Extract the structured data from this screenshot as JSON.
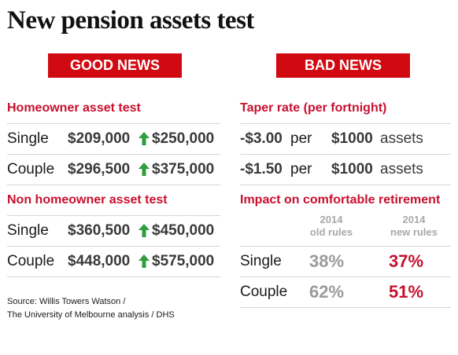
{
  "title": "New pension assets test",
  "good_news": {
    "banner": "GOOD NEWS",
    "homeowner": {
      "heading": "Homeowner asset test",
      "rows": [
        {
          "label": "Single",
          "old": "$209,000",
          "new": "$250,000"
        },
        {
          "label": "Couple",
          "old": "$296,500",
          "new": "$375,000"
        }
      ]
    },
    "non_homeowner": {
      "heading": "Non homeowner asset test",
      "rows": [
        {
          "label": "Single",
          "old": "$360,500",
          "new": "$450,000"
        },
        {
          "label": "Couple",
          "old": "$448,000",
          "new": "$575,000"
        }
      ]
    },
    "arrow_icon": "up-arrow-icon",
    "arrow_color": "#2e9e3e"
  },
  "bad_news": {
    "banner": "BAD NEWS",
    "taper": {
      "heading": "Taper rate (per fortnight)",
      "rows": [
        {
          "rate": "-$3.00",
          "per": "per",
          "amount": "$1000",
          "unit": "assets"
        },
        {
          "rate": "-$1.50",
          "per": "per",
          "amount": "$1000",
          "unit": "assets"
        }
      ]
    },
    "impact": {
      "heading": "Impact on comfortable retirement",
      "col_old": {
        "year": "2014",
        "label": "old rules"
      },
      "col_new": {
        "year": "2014",
        "label": "new rules"
      },
      "rows": [
        {
          "label": "Single",
          "old": "38%",
          "new": "37%"
        },
        {
          "label": "Couple",
          "old": "62%",
          "new": "51%"
        }
      ]
    }
  },
  "source": {
    "line1": "Source: Willis Towers Watson /",
    "line2": "The University of Melbourne analysis / DHS"
  },
  "colors": {
    "accent_red": "#d10a11",
    "heading_red": "#c8102e"
  }
}
